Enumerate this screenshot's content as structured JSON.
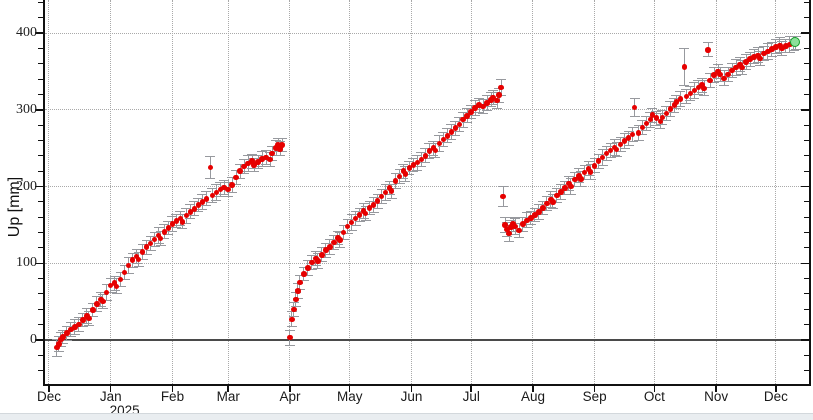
{
  "page": {
    "background": "#ffffff",
    "bottom_strip_color": "#e9edf0"
  },
  "chart_data": {
    "type": "scatter",
    "title": "",
    "xlabel": "",
    "ylabel": "Up [mm]",
    "x_unit": "days since 2024-12-01",
    "xlim": [
      -2,
      381.6
    ],
    "ylim": [
      -57.3,
      443
    ],
    "grid": "dotted, vertical at month starts, horizontal every 100 mm",
    "legend": "none",
    "x_ticks": [
      {
        "label": "Dec",
        "day": 0
      },
      {
        "label": "Jan",
        "day": 31
      },
      {
        "label": "Feb",
        "day": 62
      },
      {
        "label": "Mar",
        "day": 90
      },
      {
        "label": "Apr",
        "day": 121
      },
      {
        "label": "May",
        "day": 151
      },
      {
        "label": "Jun",
        "day": 182
      },
      {
        "label": "Jul",
        "day": 212
      },
      {
        "label": "Aug",
        "day": 243
      },
      {
        "label": "Sep",
        "day": 274
      },
      {
        "label": "Oct",
        "day": 304
      },
      {
        "label": "Nov",
        "day": 335
      },
      {
        "label": "Dec",
        "day": 365
      }
    ],
    "year_label": {
      "text": "2025",
      "day": 38
    },
    "y_ticks": [
      0,
      100,
      200,
      300,
      400
    ],
    "y_minor_step": 20,
    "zero_line_at": 0,
    "colors": {
      "point": "#e60000",
      "error_bar": "#97999e",
      "grid": "#a9a9a9",
      "zero_line": "#4a4a4a",
      "axis": "#111111",
      "latest_fill": "#8ce09a",
      "latest_ring": "#119c27"
    },
    "series": [
      {
        "name": "up-daily-solution",
        "marker": "filled-circle",
        "points_format": [
          "day",
          "up_mm",
          "sigma_mm"
        ],
        "points": [
          [
            4,
            -10,
            11
          ],
          [
            5,
            -5,
            10
          ],
          [
            6,
            1,
            9
          ],
          [
            7,
            4,
            9
          ],
          [
            9,
            9,
            9
          ],
          [
            11,
            14,
            9
          ],
          [
            13,
            17,
            10
          ],
          [
            15,
            20,
            9
          ],
          [
            17,
            26,
            9
          ],
          [
            19,
            31,
            10
          ],
          [
            20,
            28,
            9
          ],
          [
            22,
            39,
            9
          ],
          [
            24,
            47,
            10
          ],
          [
            26,
            53,
            9
          ],
          [
            27,
            50,
            9
          ],
          [
            29,
            62,
            10
          ],
          [
            31,
            71,
            9
          ],
          [
            33,
            74,
            9
          ],
          [
            34,
            70,
            10
          ],
          [
            36,
            79,
            9
          ],
          [
            38,
            88,
            9
          ],
          [
            40,
            97,
            10
          ],
          [
            42,
            104,
            9
          ],
          [
            44,
            109,
            9
          ],
          [
            45,
            105,
            9
          ],
          [
            47,
            115,
            10
          ],
          [
            49,
            121,
            9
          ],
          [
            51,
            126,
            9
          ],
          [
            53,
            131,
            9
          ],
          [
            55,
            136,
            10
          ],
          [
            56,
            132,
            9
          ],
          [
            58,
            141,
            9
          ],
          [
            60,
            146,
            9
          ],
          [
            62,
            151,
            10
          ],
          [
            64,
            155,
            9
          ],
          [
            66,
            158,
            9
          ],
          [
            67,
            154,
            9
          ],
          [
            69,
            162,
            10
          ],
          [
            71,
            167,
            9
          ],
          [
            73,
            171,
            9
          ],
          [
            75,
            176,
            9
          ],
          [
            77,
            180,
            10
          ],
          [
            79,
            184,
            9
          ],
          [
            81,
            225,
            14
          ],
          [
            82,
            188,
            9
          ],
          [
            84,
            192,
            10
          ],
          [
            86,
            196,
            9
          ],
          [
            88,
            199,
            9
          ],
          [
            90,
            196,
            9
          ],
          [
            92,
            202,
            10
          ],
          [
            94,
            212,
            9
          ],
          [
            96,
            220,
            9
          ],
          [
            98,
            226,
            9
          ],
          [
            100,
            230,
            10
          ],
          [
            102,
            233,
            9
          ],
          [
            103,
            228,
            9
          ],
          [
            105,
            232,
            9
          ],
          [
            107,
            236,
            10
          ],
          [
            109,
            238,
            9
          ],
          [
            111,
            235,
            9
          ],
          [
            112,
            243,
            9
          ],
          [
            114,
            250,
            10
          ],
          [
            115,
            254,
            9
          ],
          [
            116,
            249,
            9
          ],
          [
            117,
            254,
            9
          ],
          [
            121,
            3,
            10
          ],
          [
            122,
            27,
            10
          ],
          [
            123,
            40,
            9
          ],
          [
            124,
            53,
            9
          ],
          [
            125,
            64,
            10
          ],
          [
            126,
            75,
            9
          ],
          [
            128,
            86,
            9
          ],
          [
            130,
            94,
            10
          ],
          [
            132,
            101,
            9
          ],
          [
            134,
            106,
            9
          ],
          [
            135,
            103,
            10
          ],
          [
            137,
            111,
            9
          ],
          [
            139,
            117,
            9
          ],
          [
            141,
            121,
            10
          ],
          [
            143,
            127,
            9
          ],
          [
            145,
            133,
            9
          ],
          [
            146,
            130,
            10
          ],
          [
            148,
            140,
            9
          ],
          [
            150,
            148,
            9
          ],
          [
            152,
            153,
            10
          ],
          [
            154,
            158,
            9
          ],
          [
            156,
            163,
            9
          ],
          [
            158,
            168,
            10
          ],
          [
            159,
            165,
            9
          ],
          [
            161,
            172,
            9
          ],
          [
            163,
            176,
            10
          ],
          [
            165,
            181,
            9
          ],
          [
            167,
            187,
            9
          ],
          [
            169,
            192,
            10
          ],
          [
            171,
            198,
            9
          ],
          [
            172,
            194,
            9
          ],
          [
            174,
            207,
            10
          ],
          [
            176,
            213,
            9
          ],
          [
            178,
            220,
            9
          ],
          [
            179,
            216,
            10
          ],
          [
            181,
            224,
            9
          ],
          [
            183,
            228,
            9
          ],
          [
            185,
            231,
            10
          ],
          [
            187,
            235,
            9
          ],
          [
            189,
            240,
            9
          ],
          [
            191,
            246,
            10
          ],
          [
            193,
            250,
            9
          ],
          [
            194,
            247,
            9
          ],
          [
            196,
            256,
            10
          ],
          [
            198,
            261,
            9
          ],
          [
            200,
            266,
            9
          ],
          [
            202,
            271,
            10
          ],
          [
            204,
            276,
            9
          ],
          [
            206,
            281,
            9
          ],
          [
            208,
            287,
            10
          ],
          [
            210,
            292,
            9
          ],
          [
            212,
            297,
            9
          ],
          [
            214,
            302,
            10
          ],
          [
            216,
            306,
            9
          ],
          [
            218,
            304,
            9
          ],
          [
            220,
            309,
            10
          ],
          [
            222,
            313,
            9
          ],
          [
            223,
            316,
            9
          ],
          [
            225,
            312,
            10
          ],
          [
            226,
            319,
            9
          ],
          [
            227,
            329,
            11
          ],
          [
            228,
            187,
            13
          ],
          [
            229,
            150,
            10
          ],
          [
            230,
            144,
            9
          ],
          [
            231,
            139,
            10
          ],
          [
            232,
            147,
            9
          ],
          [
            233,
            151,
            9
          ],
          [
            234,
            148,
            10
          ],
          [
            236,
            143,
            9
          ],
          [
            238,
            151,
            9
          ],
          [
            240,
            156,
            10
          ],
          [
            242,
            159,
            9
          ],
          [
            244,
            163,
            9
          ],
          [
            246,
            167,
            10
          ],
          [
            248,
            172,
            9
          ],
          [
            250,
            178,
            9
          ],
          [
            252,
            183,
            10
          ],
          [
            253,
            180,
            9
          ],
          [
            255,
            188,
            9
          ],
          [
            257,
            193,
            10
          ],
          [
            259,
            198,
            9
          ],
          [
            261,
            204,
            9
          ],
          [
            262,
            200,
            10
          ],
          [
            264,
            209,
            9
          ],
          [
            266,
            214,
            9
          ],
          [
            267,
            210,
            10
          ],
          [
            269,
            218,
            9
          ],
          [
            271,
            223,
            9
          ],
          [
            272,
            219,
            10
          ],
          [
            274,
            227,
            9
          ],
          [
            276,
            233,
            9
          ],
          [
            278,
            238,
            10
          ],
          [
            280,
            243,
            9
          ],
          [
            282,
            247,
            9
          ],
          [
            284,
            251,
            10
          ],
          [
            285,
            248,
            9
          ],
          [
            287,
            255,
            9
          ],
          [
            289,
            259,
            10
          ],
          [
            291,
            263,
            9
          ],
          [
            293,
            268,
            9
          ],
          [
            294,
            303,
            12
          ],
          [
            296,
            270,
            10
          ],
          [
            298,
            277,
            9
          ],
          [
            300,
            282,
            9
          ],
          [
            302,
            287,
            10
          ],
          [
            303,
            293,
            9
          ],
          [
            305,
            289,
            9
          ],
          [
            307,
            285,
            10
          ],
          [
            308,
            290,
            9
          ],
          [
            310,
            295,
            9
          ],
          [
            312,
            301,
            10
          ],
          [
            314,
            306,
            9
          ],
          [
            315,
            310,
            9
          ],
          [
            317,
            314,
            10
          ],
          [
            319,
            356,
            24
          ],
          [
            320,
            317,
            9
          ],
          [
            322,
            321,
            9
          ],
          [
            324,
            325,
            10
          ],
          [
            326,
            329,
            9
          ],
          [
            328,
            332,
            9
          ],
          [
            329,
            328,
            10
          ],
          [
            331,
            378,
            9
          ],
          [
            332,
            338,
            9
          ],
          [
            334,
            345,
            10
          ],
          [
            336,
            350,
            9
          ],
          [
            337,
            346,
            9
          ],
          [
            339,
            341,
            10
          ],
          [
            341,
            346,
            9
          ],
          [
            343,
            351,
            9
          ],
          [
            345,
            355,
            10
          ],
          [
            347,
            359,
            9
          ],
          [
            348,
            355,
            9
          ],
          [
            350,
            362,
            10
          ],
          [
            352,
            366,
            9
          ],
          [
            354,
            369,
            9
          ],
          [
            356,
            371,
            10
          ],
          [
            357,
            367,
            9
          ],
          [
            359,
            373,
            9
          ],
          [
            361,
            376,
            10
          ],
          [
            363,
            379,
            9
          ],
          [
            365,
            382,
            9
          ],
          [
            367,
            384,
            10
          ],
          [
            368,
            380,
            9
          ],
          [
            370,
            383,
            9
          ],
          [
            372,
            385,
            10
          ],
          [
            374,
            386,
            9
          ],
          [
            375,
            387,
            9
          ]
        ]
      }
    ],
    "latest_point_highlight": {
      "day": 375,
      "up_mm": 387,
      "marker": "green-circled-dot"
    }
  }
}
